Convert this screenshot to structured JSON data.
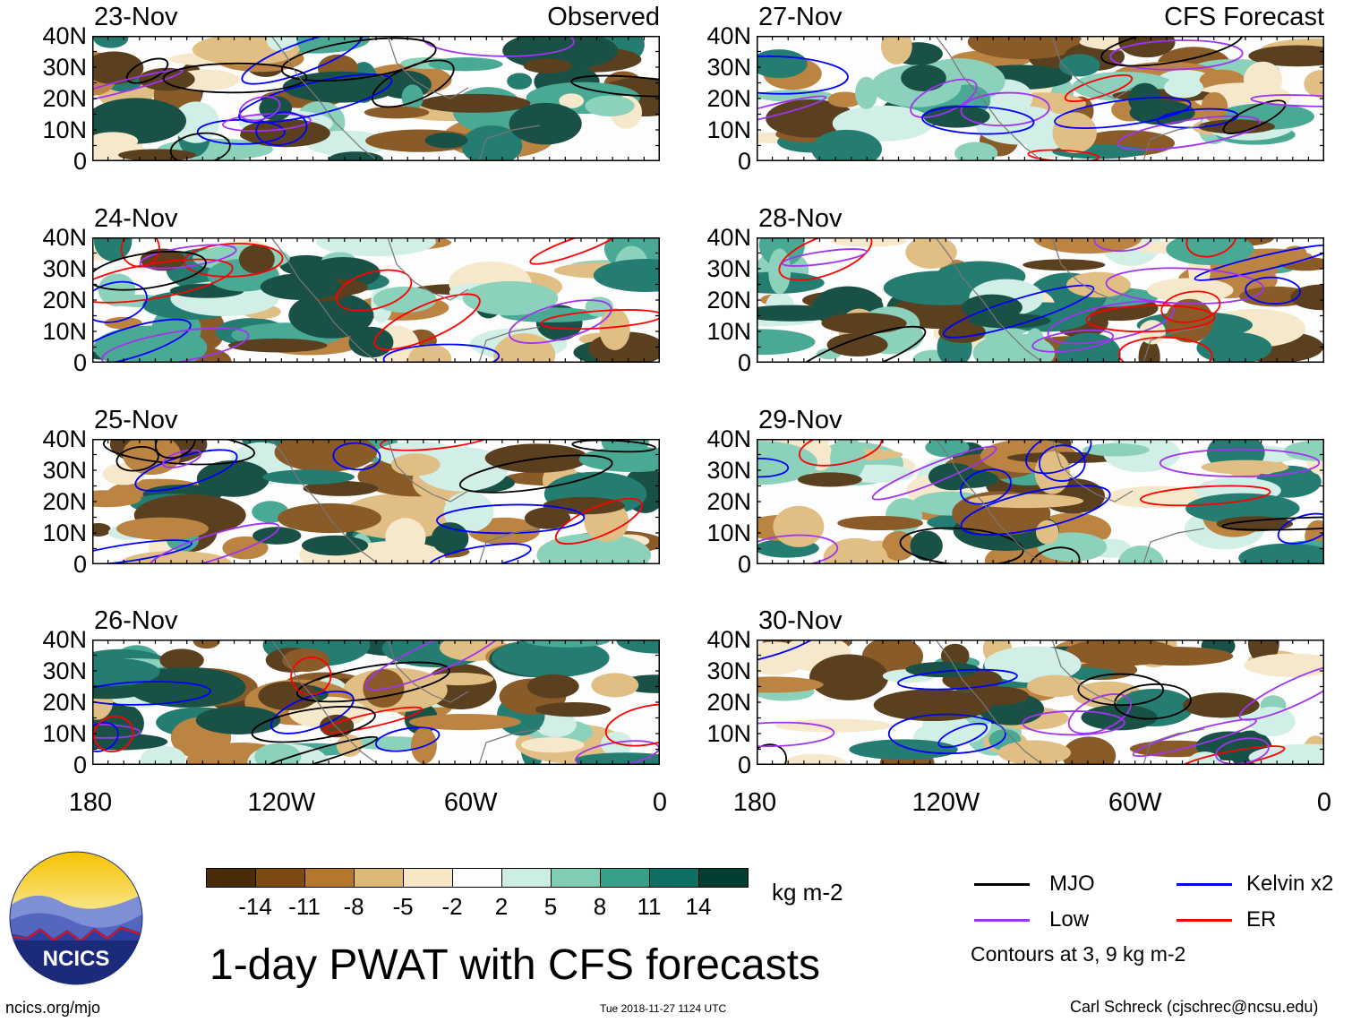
{
  "panels": [
    {
      "date": "23-Nov",
      "corner": "Observed"
    },
    {
      "date": "27-Nov",
      "corner": "CFS Forecast"
    },
    {
      "date": "24-Nov",
      "corner": ""
    },
    {
      "date": "28-Nov",
      "corner": ""
    },
    {
      "date": "25-Nov",
      "corner": ""
    },
    {
      "date": "29-Nov",
      "corner": ""
    },
    {
      "date": "26-Nov",
      "corner": ""
    },
    {
      "date": "30-Nov",
      "corner": ""
    }
  ],
  "lat_labels": [
    "40N",
    "30N",
    "20N",
    "10N",
    "0"
  ],
  "lon_labels": [
    "180",
    "120W",
    "60W",
    "0"
  ],
  "colorbar": {
    "labels": [
      "-14",
      "-11",
      "-8",
      "-5",
      "-2",
      "2",
      "5",
      "8",
      "11",
      "14"
    ],
    "colors": [
      "#4a2c09",
      "#7d4a12",
      "#b5772e",
      "#deb877",
      "#f6e6c5",
      "#fdfdfd",
      "#cdeee5",
      "#80cdb6",
      "#36a08a",
      "#0e6f62",
      "#023f33"
    ],
    "units": "kg m-2"
  },
  "title": "1-day PWAT with CFS forecasts",
  "legend": [
    {
      "label": "MJO",
      "color": "#000000"
    },
    {
      "label": "Kelvin x2",
      "color": "#0000ff"
    },
    {
      "label": "Low",
      "color": "#a034f0"
    },
    {
      "label": "ER",
      "color": "#ff0000"
    }
  ],
  "contour_note": "Contours at 3, 9 kg m-2",
  "logo_text": "NCICS",
  "footer": {
    "left": "ncics.org/mjo",
    "middle": "Tue 2018-11-27 1124 UTC",
    "right": "Carl Schreck (cjschrec@ncsu.edu)"
  }
}
